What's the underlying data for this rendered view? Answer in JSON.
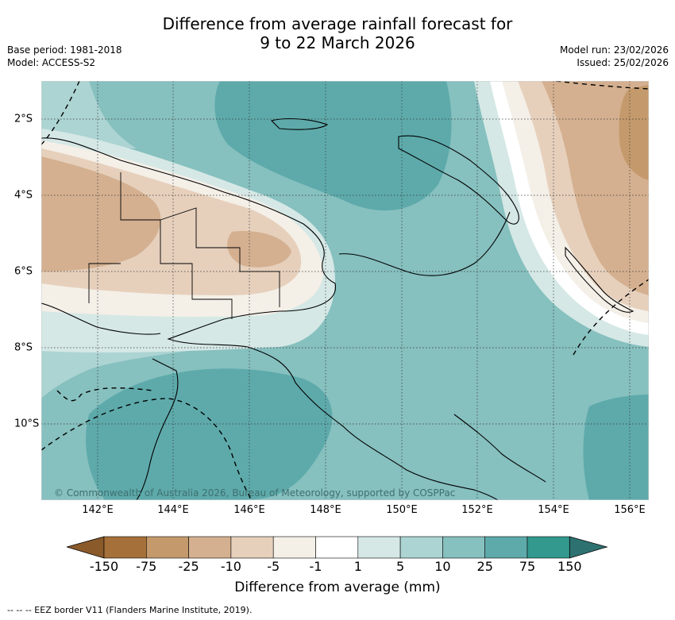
{
  "title": {
    "line1": "Difference from average rainfall forecast for",
    "line2": "9 to 22 March 2026"
  },
  "meta": {
    "base_period": "Base period: 1981-2018",
    "model": "Model: ACCESS-S2",
    "model_run": "Model run: 23/02/2026",
    "issued": "Issued: 25/02/2026"
  },
  "map": {
    "lon_labels": [
      "142°E",
      "144°E",
      "146°E",
      "148°E",
      "150°E",
      "152°E",
      "154°E",
      "156°E"
    ],
    "lat_labels": [
      "2°S",
      "4°S",
      "6°S",
      "8°S",
      "10°S"
    ],
    "copyright": "© Commonwealth of Australia 2026, Bureau of Meteorology, supported by COSPPac"
  },
  "legend": {
    "ticks": [
      "-150",
      "-75",
      "-25",
      "-10",
      "-5",
      "-1",
      "1",
      "5",
      "10",
      "25",
      "75",
      "150"
    ],
    "colors": [
      "#a5703a",
      "#c49a6c",
      "#d4b090",
      "#e6d0bc",
      "#f4efe7",
      "#ffffff",
      "#d5e8e6",
      "#acd4d3",
      "#86c0bf",
      "#5eaaab",
      "#33998f"
    ],
    "low_arrow_color": "#8b5a2b",
    "high_arrow_color": "#2d7270",
    "label": "Difference from average (mm)"
  },
  "footer": "--  --  -- EEZ border V11 (Flanders Marine Institute, 2019)."
}
